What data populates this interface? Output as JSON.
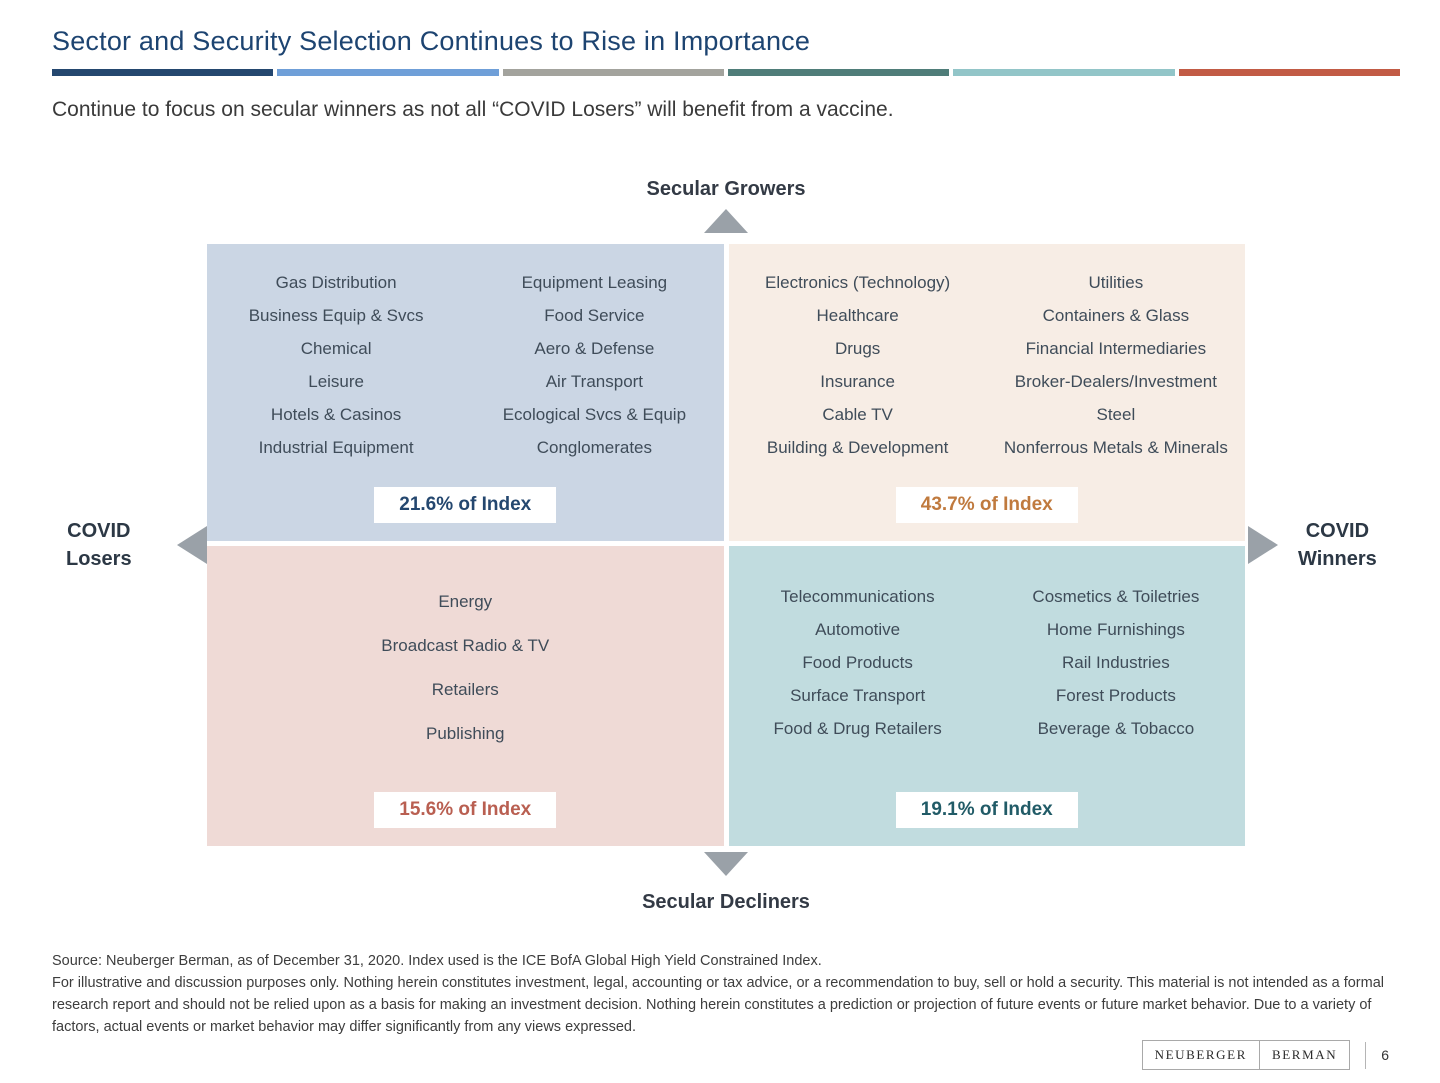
{
  "slide": {
    "title": "Sector and Security Selection Continues to Rise in Importance",
    "subtitle": "Continue to focus on secular winners as not all “COVID Losers” will benefit from a vaccine.",
    "page_number": "6"
  },
  "divider_colors": [
    "#24476f",
    "#6f9fd8",
    "#a3a39d",
    "#4f7d79",
    "#92c5c8",
    "#c25b45"
  ],
  "axes": {
    "top_label": "Secular Growers",
    "bottom_label": "Secular Decliners",
    "left_label_line1": "COVID",
    "left_label_line2": "Losers",
    "right_label_line1": "COVID",
    "right_label_line2": "Winners"
  },
  "quadrants": {
    "top_left": {
      "bg_color": "#cbd6e4",
      "badge": "21.6% of Index",
      "badge_color": "#24476f",
      "col1": [
        "Gas Distribution",
        "Business Equip & Svcs",
        "Chemical",
        "Leisure",
        "Hotels & Casinos",
        "Industrial Equipment"
      ],
      "col2": [
        "Equipment Leasing",
        "Food Service",
        "Aero & Defense",
        "Air Transport",
        "Ecological Svcs & Equip",
        "Conglomerates"
      ]
    },
    "top_right": {
      "bg_color": "#f7ede5",
      "badge": "43.7% of Index",
      "badge_color": "#c07a3e",
      "col1": [
        "Electronics (Technology)",
        "Healthcare",
        "Drugs",
        "Insurance",
        "Cable TV",
        "Building & Development"
      ],
      "col2": [
        "Utilities",
        "Containers & Glass",
        "Financial Intermediaries",
        "Broker-Dealers/Investment",
        "Steel",
        "Nonferrous Metals & Minerals"
      ]
    },
    "bottom_left": {
      "bg_color": "#efdad6",
      "badge": "15.6% of Index",
      "badge_color": "#b95f51",
      "col1": [
        "Energy",
        "Broadcast Radio & TV",
        "Retailers",
        "Publishing"
      ]
    },
    "bottom_right": {
      "bg_color": "#c1dcdf",
      "badge": "19.1% of Index",
      "badge_color": "#215b67",
      "col1": [
        "Telecommunications",
        "Automotive",
        "Food Products",
        "Surface Transport",
        "Food & Drug Retailers"
      ],
      "col2": [
        "Cosmetics & Toiletries",
        "Home Furnishings",
        "Rail Industries",
        "Forest Products",
        "Beverage & Tobacco"
      ]
    }
  },
  "footer": {
    "source": "Source: Neuberger Berman, as of December 31, 2020. Index used is the ICE BofA Global High Yield Constrained Index.",
    "disclaimer": "For illustrative and discussion purposes only. Nothing herein constitutes investment, legal, accounting or tax advice, or a recommendation to buy, sell or hold a security. This material is not intended as a formal research report and should not be relied upon as a basis for making an investment decision. Nothing herein constitutes a prediction or projection of future events or future market behavior. Due to a variety of factors, actual events or market behavior may differ significantly from any views expressed.",
    "logo": {
      "left": "NEUBERGER",
      "right": "BERMAN"
    }
  }
}
